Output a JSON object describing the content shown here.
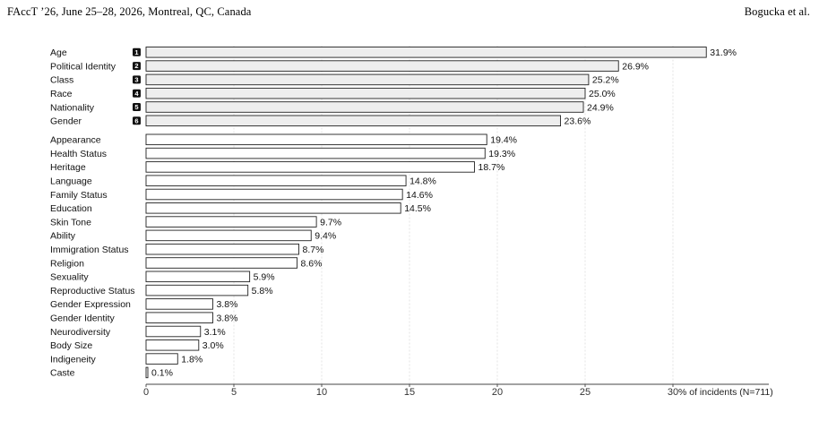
{
  "header": {
    "left": "FAccT ’26, June 25–28, 2026, Montreal, QC, Canada",
    "right": "Bogucka et al."
  },
  "colors": {
    "top_bar_fill": "#eeeeee",
    "bar_fill": "#ffffff",
    "bar_stroke": "#222222",
    "badge_fill": "#111111",
    "grid": "#dddddd"
  },
  "chart_data": {
    "type": "bar",
    "orientation": "horizontal",
    "xlabel": "% of incidents (N=711)",
    "xlim": [
      0,
      35
    ],
    "xticks": [
      0,
      5,
      10,
      15,
      20,
      25,
      30
    ],
    "grid": "vertical dashed",
    "groups": [
      {
        "highlighted": true,
        "bars": [
          {
            "label": "Age",
            "rank": "1",
            "value": 31.9,
            "value_label": "31.9%"
          },
          {
            "label": "Political Identity",
            "rank": "2",
            "value": 26.9,
            "value_label": "26.9%"
          },
          {
            "label": "Class",
            "rank": "3",
            "value": 25.2,
            "value_label": "25.2%"
          },
          {
            "label": "Race",
            "rank": "4",
            "value": 25.0,
            "value_label": "25.0%"
          },
          {
            "label": "Nationality",
            "rank": "5",
            "value": 24.9,
            "value_label": "24.9%"
          },
          {
            "label": "Gender",
            "rank": "6",
            "value": 23.6,
            "value_label": "23.6%"
          }
        ]
      },
      {
        "highlighted": false,
        "bars": [
          {
            "label": "Appearance",
            "value": 19.4,
            "value_label": "19.4%"
          },
          {
            "label": "Health Status",
            "value": 19.3,
            "value_label": "19.3%"
          },
          {
            "label": "Heritage",
            "value": 18.7,
            "value_label": "18.7%"
          },
          {
            "label": "Language",
            "value": 14.8,
            "value_label": "14.8%"
          },
          {
            "label": "Family Status",
            "value": 14.6,
            "value_label": "14.6%"
          },
          {
            "label": "Education",
            "value": 14.5,
            "value_label": "14.5%"
          },
          {
            "label": "Skin Tone",
            "value": 9.7,
            "value_label": "9.7%"
          },
          {
            "label": "Ability",
            "value": 9.4,
            "value_label": "9.4%"
          },
          {
            "label": "Immigration Status",
            "value": 8.7,
            "value_label": "8.7%"
          },
          {
            "label": "Religion",
            "value": 8.6,
            "value_label": "8.6%"
          },
          {
            "label": "Sexuality",
            "value": 5.9,
            "value_label": "5.9%"
          },
          {
            "label": "Reproductive Status",
            "value": 5.8,
            "value_label": "5.8%"
          },
          {
            "label": "Gender Expression",
            "value": 3.8,
            "value_label": "3.8%"
          },
          {
            "label": "Gender Identity",
            "value": 3.8,
            "value_label": "3.8%"
          },
          {
            "label": "Neurodiversity",
            "value": 3.1,
            "value_label": "3.1%"
          },
          {
            "label": "Body Size",
            "value": 3.0,
            "value_label": "3.0%"
          },
          {
            "label": "Indigeneity",
            "value": 1.8,
            "value_label": "1.8%"
          },
          {
            "label": "Caste",
            "value": 0.1,
            "value_label": "0.1%"
          }
        ]
      }
    ]
  }
}
